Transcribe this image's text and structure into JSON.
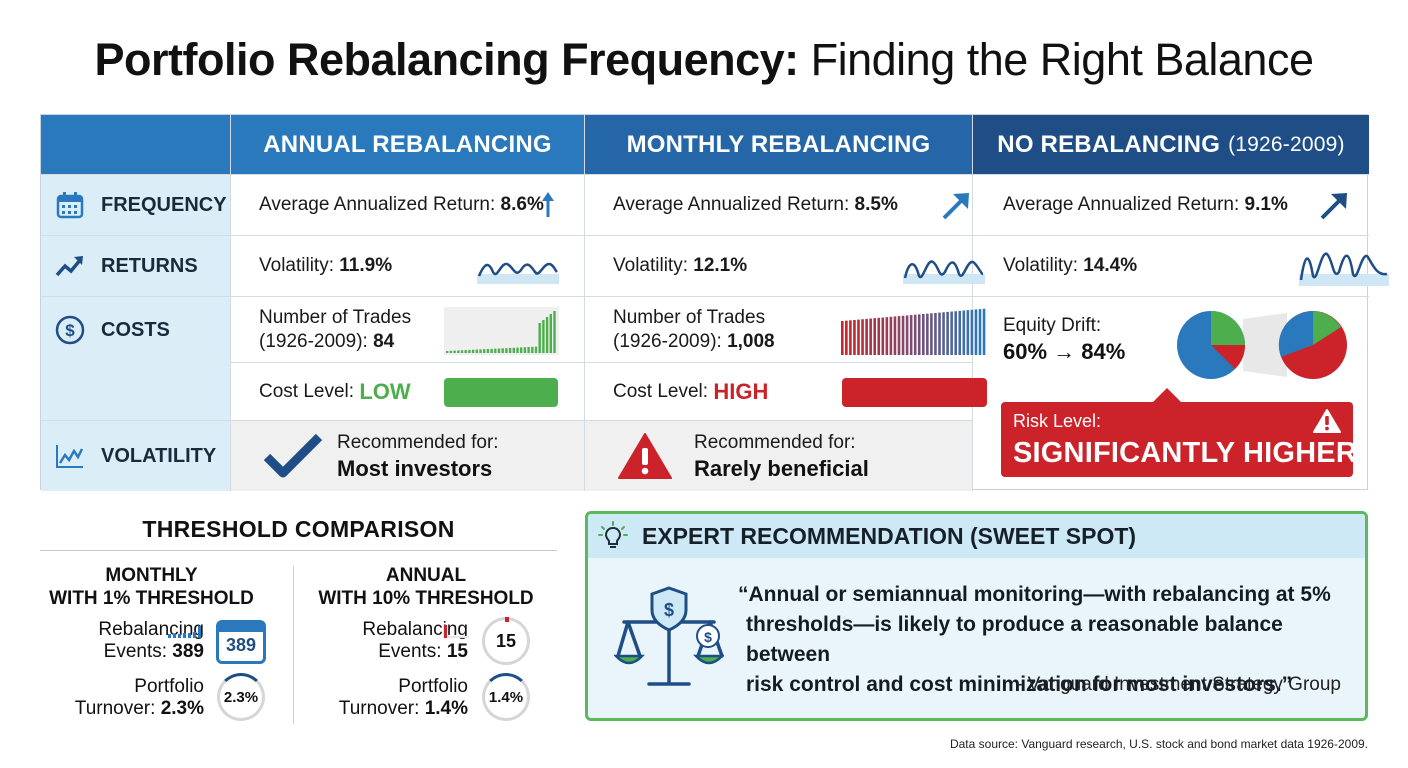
{
  "title": {
    "bold": "Portfolio Rebalancing Frequency:",
    "rest": "Finding the Right Balance"
  },
  "columns": [
    {
      "label": "ANNUAL REBALANCING",
      "sub": ""
    },
    {
      "label": "MONTHLY REBALANCING",
      "sub": ""
    },
    {
      "label": "NO REBALANCING",
      "sub": "(1926-2009)"
    }
  ],
  "row_labels": [
    "FREQUENCY",
    "RETURNS",
    "COSTS",
    "VOLATILITY"
  ],
  "annual": {
    "return_label": "Average Annualized Return:",
    "return_value": "8.6%",
    "vol_label": "Volatility:",
    "vol_value": "11.9%",
    "trades_label_1": "Number of Trades",
    "trades_label_2": "(1926-2009):",
    "trades_value": "84",
    "cost_label": "Cost Level:",
    "cost_value": "LOW",
    "rec_label": "Recommended for:",
    "rec_value": "Most investors"
  },
  "monthly": {
    "return_label": "Average Annualized Return:",
    "return_value": "8.5%",
    "vol_label": "Volatility:",
    "vol_value": "12.1%",
    "trades_label_1": "Number of Trades",
    "trades_label_2": "(1926-2009):",
    "trades_value": "1,008",
    "cost_label": "Cost Level:",
    "cost_value": "HIGH",
    "rec_label": "Recommended for:",
    "rec_value": "Rarely beneficial"
  },
  "none": {
    "return_label": "Average Annualized Return:",
    "return_value": "9.1%",
    "vol_label": "Volatility:",
    "vol_value": "14.4%",
    "drift_label": "Equity Drift:",
    "drift_value": "60% → 84%",
    "risk_label": "Risk Level:",
    "risk_value": "SIGNIFICANTLY HIGHER"
  },
  "threshold": {
    "title": "THRESHOLD COMPARISON",
    "left": {
      "head_1": "MONTHLY",
      "head_2": "WITH 1% THRESHOLD",
      "events_label_1": "Rebalancing",
      "events_label_2": "Events:",
      "events_value": "389",
      "events_icon": "389",
      "turnover_label_1": "Portfolio",
      "turnover_label_2": "Turnover:",
      "turnover_value": "2.3%",
      "turnover_donut": "2.3%"
    },
    "right": {
      "head_1": "ANNUAL",
      "head_2": "WITH 10% THRESHOLD",
      "events_label_1": "Rebalancing",
      "events_label_2": "Events:",
      "events_value": "15",
      "events_donut": "15",
      "turnover_label_1": "Portfolio",
      "turnover_label_2": "Turnover:",
      "turnover_value": "1.4%",
      "turnover_donut": "1.4%"
    }
  },
  "expert": {
    "heading": "EXPERT RECOMMENDATION (SWEET SPOT)",
    "quote_1": "“Annual or semiannual monitoring—with rebalancing at 5%",
    "quote_2": "thresholds—is likely to produce a reasonable balance between",
    "quote_3": "risk control and cost minimization for most investors.”",
    "attribution": "- Vanguard Investment Strategy Group"
  },
  "source": "Data source: Vanguard research, U.S. stock and bond market data 1926-2009.",
  "colors": {
    "header_blue": "#2a79bd",
    "header_navy": "#1f4e86",
    "green": "#4cae4c",
    "red": "#cc2229",
    "row_label_bg": "#dbeef8"
  }
}
